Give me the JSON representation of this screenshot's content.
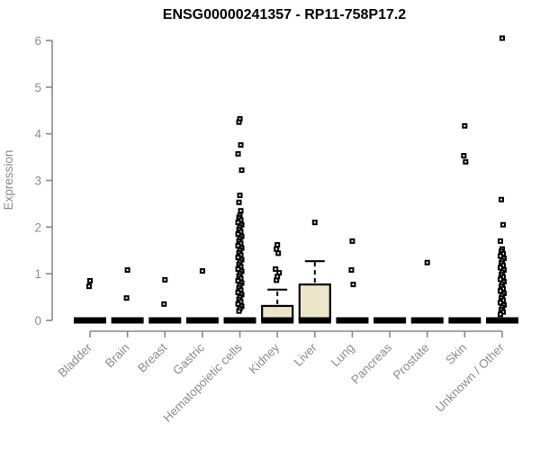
{
  "chart_data": {
    "type": "boxplot",
    "title": "ENSG00000241357 - RP11-758P17.2",
    "ylabel": "Expression",
    "ylim": [
      0,
      6
    ],
    "yticks": [
      0,
      1,
      2,
      3,
      4,
      5,
      6
    ],
    "grid": false,
    "colors": {
      "box_fill": "#EBE6C9",
      "box_border": "#000000",
      "median": "#000000",
      "point": "#000000",
      "point_center": "#ffffff",
      "axis": "#888888",
      "tick_label": "#8c8c8c",
      "title": "#000000"
    },
    "groups": [
      {
        "label": "Bladder",
        "q1": 0,
        "median": 0,
        "q3": 0,
        "whisker_high": 0,
        "points": [
          0.85,
          0.73
        ]
      },
      {
        "label": "Brain",
        "q1": 0,
        "median": 0,
        "q3": 0,
        "whisker_high": 0,
        "points": [
          1.08,
          0.48
        ]
      },
      {
        "label": "Breast",
        "q1": 0,
        "median": 0,
        "q3": 0,
        "whisker_high": 0,
        "points": [
          0.87,
          0.35
        ]
      },
      {
        "label": "Gastric",
        "q1": 0,
        "median": 0,
        "q3": 0,
        "whisker_high": 0,
        "points": [
          1.06
        ]
      },
      {
        "label": "Hematopoietic cells",
        "q1": 0,
        "median": 0,
        "q3": 0,
        "whisker_high": 0,
        "points": [
          4.32,
          4.25,
          3.76,
          3.57,
          3.22,
          2.68,
          2.53,
          2.35
        ],
        "dense_range": {
          "min": 0.15,
          "max": 2.25
        }
      },
      {
        "label": "Kidney",
        "q1": 0,
        "median": 0,
        "q3": 0.31,
        "whisker_high": 0.66,
        "points": [
          1.62,
          1.53,
          1.44,
          1.1,
          1.02,
          0.94,
          0.86
        ]
      },
      {
        "label": "Liver",
        "q1": 0,
        "median": 0,
        "q3": 0.77,
        "whisker_high": 1.27,
        "points": [
          2.1
        ]
      },
      {
        "label": "Lung",
        "q1": 0,
        "median": 0,
        "q3": 0,
        "whisker_high": 0,
        "points": [
          1.7,
          1.08,
          0.77
        ]
      },
      {
        "label": "Pancreas",
        "q1": 0,
        "median": 0,
        "q3": 0,
        "whisker_high": 0,
        "points": []
      },
      {
        "label": "Prostate",
        "q1": 0,
        "median": 0,
        "q3": 0,
        "whisker_high": 0,
        "points": [
          1.24
        ]
      },
      {
        "label": "Skin",
        "q1": 0,
        "median": 0,
        "q3": 0,
        "whisker_high": 0,
        "points": [
          4.17,
          3.53,
          3.4
        ]
      },
      {
        "label": "Unknown / Other",
        "q1": 0,
        "median": 0,
        "q3": 0,
        "whisker_high": 0,
        "points": [
          6.05,
          2.59,
          2.05,
          1.7
        ],
        "dense_range": {
          "min": 0.12,
          "max": 1.53
        }
      }
    ]
  }
}
